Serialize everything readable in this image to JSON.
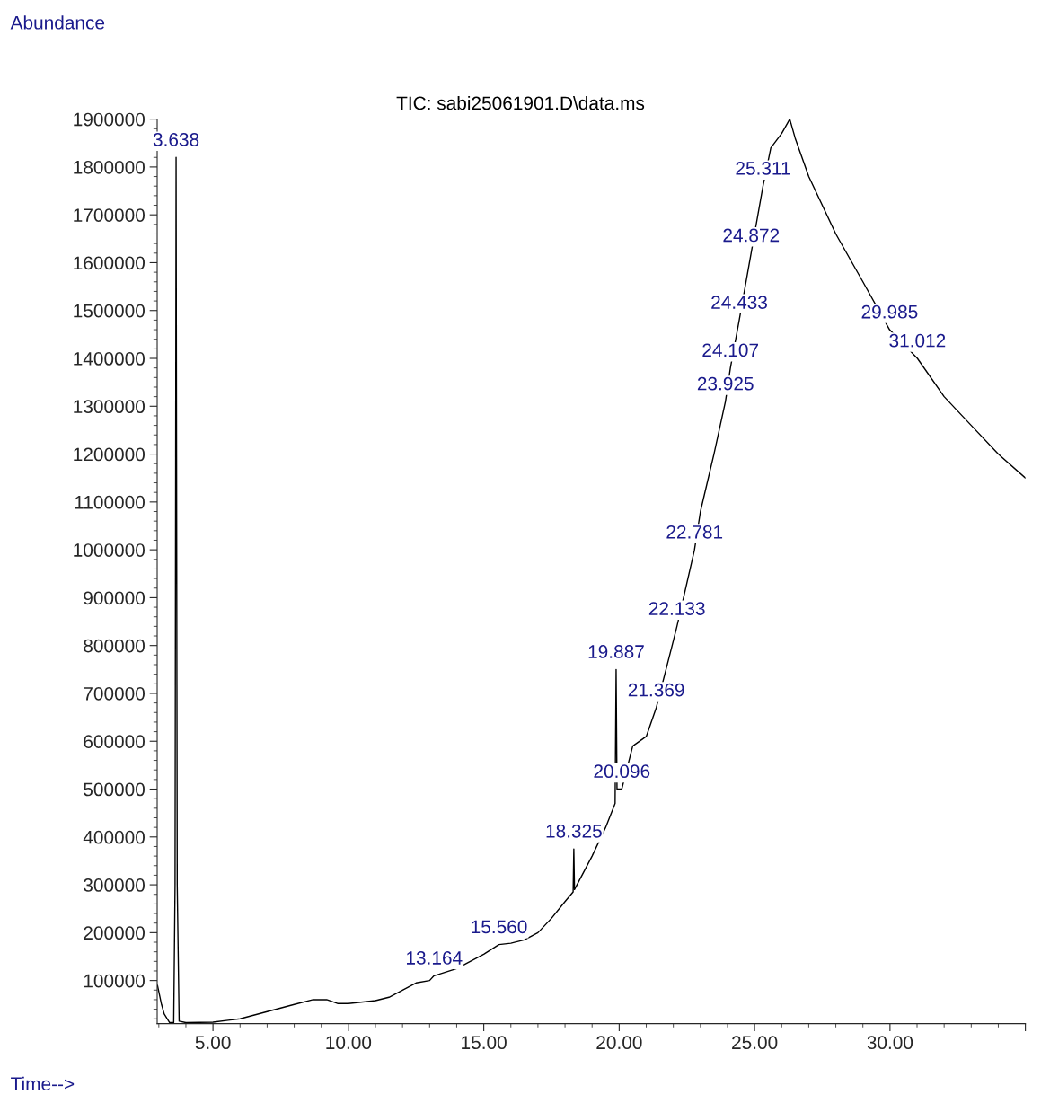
{
  "chart_data": {
    "type": "line",
    "title": "TIC: sabi25061901.D\\data.ms",
    "xlabel": "Time-->",
    "ylabel": "Abundance",
    "series": [
      {
        "color": "#000000",
        "x": [
          2.95,
          3.1,
          3.2,
          3.4,
          3.55,
          3.6,
          3.638,
          3.68,
          3.75,
          4.0,
          5.0,
          6.0,
          7.0,
          8.0,
          8.7,
          9.2,
          9.6,
          10.0,
          11.0,
          11.5,
          12.0,
          12.5,
          13.0,
          13.164,
          14.0,
          15.0,
          15.56,
          16.0,
          16.5,
          17.0,
          17.5,
          18.0,
          18.3,
          18.325,
          18.35,
          19.0,
          19.5,
          19.85,
          19.887,
          19.92,
          20.096,
          20.5,
          21.0,
          21.369,
          22.0,
          22.133,
          22.781,
          23.0,
          23.5,
          23.925,
          24.107,
          24.433,
          24.872,
          25.311,
          25.6,
          26.0,
          26.3,
          26.5,
          27.0,
          28.0,
          29.0,
          29.985,
          31.012,
          32.0,
          33.0,
          34.0,
          35.0
        ],
        "values": [
          90000,
          50000,
          30000,
          12000,
          12000,
          300000,
          1820000,
          300000,
          15000,
          12000,
          13000,
          20000,
          35000,
          50000,
          60000,
          60000,
          52000,
          52000,
          58000,
          65000,
          80000,
          95000,
          100000,
          110000,
          125000,
          155000,
          175000,
          178000,
          185000,
          200000,
          230000,
          265000,
          285000,
          375000,
          290000,
          360000,
          420000,
          470000,
          750000,
          500000,
          500000,
          590000,
          610000,
          670000,
          810000,
          840000,
          1000000,
          1080000,
          1200000,
          1310000,
          1380000,
          1480000,
          1620000,
          1760000,
          1840000,
          1870000,
          1900000,
          1860000,
          1780000,
          1660000,
          1560000,
          1460000,
          1400000,
          1320000,
          1260000,
          1200000,
          1150000
        ]
      }
    ],
    "xlim": [
      2.94,
      35.0
    ],
    "xticks": [
      {
        "value": 5,
        "label": "5.00"
      },
      {
        "value": 10,
        "label": "10.00"
      },
      {
        "value": 15,
        "label": "15.00"
      },
      {
        "value": 20,
        "label": "20.00"
      },
      {
        "value": 25,
        "label": "25.00"
      },
      {
        "value": 30,
        "label": "30.00"
      },
      {
        "value": 35,
        "label": null
      }
    ],
    "ylim": [
      10000,
      1900000
    ],
    "yticks": [
      100000,
      200000,
      300000,
      400000,
      500000,
      600000,
      700000,
      800000,
      900000,
      1000000,
      1100000,
      1200000,
      1300000,
      1400000,
      1500000,
      1600000,
      1700000,
      1800000,
      1900000
    ],
    "annotations": [
      {
        "text": "3.638",
        "x": 3.638,
        "y": 1820000
      },
      {
        "text": "13.164",
        "x": 13.164,
        "y": 110000
      },
      {
        "text": "15.560",
        "x": 15.56,
        "y": 175000
      },
      {
        "text": "18.325",
        "x": 18.325,
        "y": 375000
      },
      {
        "text": "19.887",
        "x": 19.887,
        "y": 750000
      },
      {
        "text": "20.096",
        "x": 20.096,
        "y": 500000
      },
      {
        "text": "21.369",
        "x": 21.369,
        "y": 670000
      },
      {
        "text": "22.133",
        "x": 22.133,
        "y": 840000
      },
      {
        "text": "22.781",
        "x": 22.781,
        "y": 1000000
      },
      {
        "text": "23.925",
        "x": 23.925,
        "y": 1310000
      },
      {
        "text": "24.107",
        "x": 24.107,
        "y": 1380000
      },
      {
        "text": "24.433",
        "x": 24.433,
        "y": 1480000
      },
      {
        "text": "24.872",
        "x": 24.872,
        "y": 1620000
      },
      {
        "text": "25.311",
        "x": 25.311,
        "y": 1760000
      },
      {
        "text": "29.985",
        "x": 29.985,
        "y": 1460000
      },
      {
        "text": "31.012",
        "x": 31.012,
        "y": 1400000
      }
    ],
    "grid": false,
    "legend": false
  }
}
